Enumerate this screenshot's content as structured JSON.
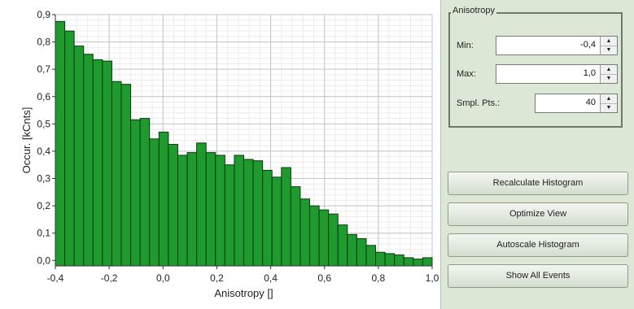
{
  "chart_data": {
    "type": "bar",
    "x": [
      -0.4,
      -0.365,
      -0.33,
      -0.295,
      -0.26,
      -0.225,
      -0.19,
      -0.155,
      -0.12,
      -0.085,
      -0.05,
      -0.015,
      0.02,
      0.055,
      0.09,
      0.125,
      0.16,
      0.195,
      0.23,
      0.265,
      0.3,
      0.335,
      0.37,
      0.405,
      0.44,
      0.475,
      0.51,
      0.545,
      0.58,
      0.615,
      0.65,
      0.685,
      0.72,
      0.755,
      0.79,
      0.825,
      0.86,
      0.895,
      0.93,
      0.965
    ],
    "values": [
      0.875,
      0.84,
      0.785,
      0.755,
      0.735,
      0.73,
      0.655,
      0.645,
      0.515,
      0.52,
      0.445,
      0.47,
      0.425,
      0.385,
      0.395,
      0.43,
      0.395,
      0.385,
      0.35,
      0.385,
      0.37,
      0.365,
      0.33,
      0.305,
      0.34,
      0.27,
      0.225,
      0.2,
      0.185,
      0.17,
      0.13,
      0.095,
      0.08,
      0.055,
      0.03,
      0.025,
      0.02,
      0.01,
      0.005,
      0.01
    ],
    "bin_width": 0.035,
    "xlabel": "Anisotropy []",
    "ylabel": "Occur. [kCnts]",
    "xlim": [
      -0.4,
      1.0
    ],
    "ylim": [
      -0.02,
      0.9
    ],
    "x_ticks": [
      "-0,4",
      "-0,2",
      "0,0",
      "0,2",
      "0,4",
      "0,6",
      "0,8",
      "1,0"
    ],
    "y_ticks": [
      "0,0",
      "0,1",
      "0,2",
      "0,3",
      "0,4",
      "0,5",
      "0,6",
      "0,7",
      "0,8",
      "0,9"
    ],
    "grid": true,
    "colors": {
      "bar": "#1f9a2e",
      "bar_edge": "#0a3d0f"
    }
  },
  "panel": {
    "group_title": "Anisotropy",
    "min_label": "Min:",
    "min_value": "-0,4",
    "max_label": "Max:",
    "max_value": "1,0",
    "pts_label": "Smpl. Pts.:",
    "pts_value": "40",
    "recalc_label": "Recalculate Histogram",
    "optimize_label": "Optimize View",
    "autoscale_label": "Autoscale Histogram",
    "showall_label": "Show All Events"
  }
}
